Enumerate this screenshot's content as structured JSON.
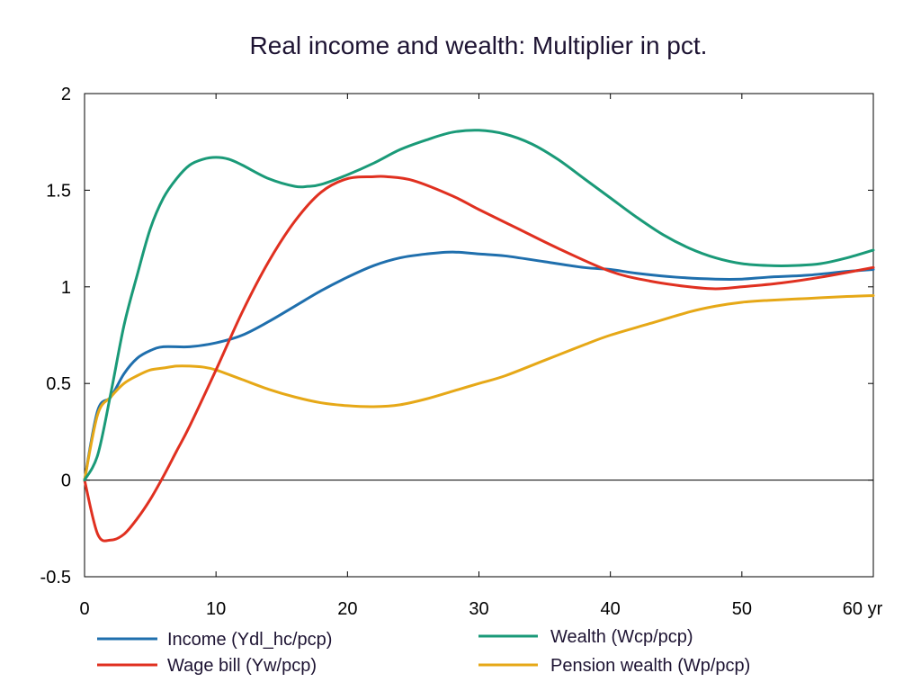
{
  "chart_data": {
    "type": "line",
    "title": "Real income and wealth: Multiplier in pct.",
    "xlabel": "",
    "ylabel": "",
    "x_unit_label": "yr",
    "xlim": [
      0,
      60
    ],
    "ylim": [
      -0.5,
      2
    ],
    "x_ticks": [
      0,
      10,
      20,
      30,
      40,
      50,
      60
    ],
    "x_tick_labels": [
      "0",
      "10",
      "20",
      "30",
      "40",
      "50",
      "60 yr"
    ],
    "y_ticks": [
      -0.5,
      0,
      0.5,
      1,
      1.5,
      2
    ],
    "y_tick_labels": [
      "-0.5",
      "0",
      "0.5",
      "1",
      "1.5",
      "2"
    ],
    "grid": false,
    "zero_line": true,
    "legend_position": "bottom",
    "series": [
      {
        "name": "Income (Ydl_hc/pcp)",
        "color": "#1f6fad",
        "x": [
          0,
          1,
          2,
          3,
          4,
          5,
          6,
          8,
          10,
          12,
          14,
          16,
          18,
          20,
          22,
          24,
          26,
          28,
          30,
          32,
          35,
          38,
          40,
          42,
          45,
          48,
          50,
          52,
          55,
          58,
          60
        ],
        "y": [
          0,
          0.36,
          0.43,
          0.55,
          0.63,
          0.67,
          0.69,
          0.69,
          0.71,
          0.75,
          0.82,
          0.9,
          0.98,
          1.05,
          1.11,
          1.15,
          1.17,
          1.18,
          1.17,
          1.16,
          1.13,
          1.1,
          1.09,
          1.07,
          1.05,
          1.04,
          1.04,
          1.05,
          1.06,
          1.08,
          1.09
        ]
      },
      {
        "name": "Wage bill (Yw/pcp)",
        "color": "#e03020",
        "x": [
          0,
          1,
          2,
          3,
          4,
          5,
          6,
          7,
          8,
          10,
          12,
          14,
          16,
          18,
          20,
          22,
          23,
          25,
          28,
          30,
          33,
          36,
          40,
          43,
          46,
          48,
          50,
          53,
          56,
          60
        ],
        "y": [
          0,
          -0.28,
          -0.31,
          -0.28,
          -0.2,
          -0.1,
          0.02,
          0.15,
          0.28,
          0.57,
          0.87,
          1.13,
          1.34,
          1.49,
          1.56,
          1.57,
          1.57,
          1.55,
          1.47,
          1.4,
          1.3,
          1.2,
          1.08,
          1.03,
          1.0,
          0.99,
          1.0,
          1.02,
          1.05,
          1.1
        ]
      },
      {
        "name": "Wealth (Wcp/pcp)",
        "color": "#1a9a78",
        "x": [
          0,
          1,
          2,
          3,
          4,
          5,
          6,
          7,
          8,
          9,
          10,
          11,
          12,
          14,
          16,
          17,
          18,
          20,
          22,
          24,
          26,
          28,
          30,
          32,
          34,
          36,
          38,
          40,
          42,
          44,
          46,
          48,
          50,
          52,
          54,
          56,
          58,
          60
        ],
        "y": [
          0,
          0.13,
          0.45,
          0.8,
          1.06,
          1.3,
          1.46,
          1.56,
          1.63,
          1.66,
          1.67,
          1.66,
          1.63,
          1.56,
          1.52,
          1.52,
          1.53,
          1.58,
          1.64,
          1.71,
          1.76,
          1.8,
          1.81,
          1.79,
          1.74,
          1.66,
          1.56,
          1.46,
          1.36,
          1.27,
          1.2,
          1.15,
          1.12,
          1.11,
          1.11,
          1.12,
          1.15,
          1.19
        ]
      },
      {
        "name": "Pension wealth (Wp/pcp)",
        "color": "#e6a817",
        "x": [
          0,
          1,
          2,
          3,
          4,
          5,
          6,
          7,
          8,
          9,
          10,
          12,
          14,
          16,
          18,
          20,
          22,
          24,
          26,
          28,
          30,
          32,
          35,
          38,
          40,
          43,
          46,
          48,
          50,
          52,
          55,
          58,
          60
        ],
        "y": [
          0,
          0.34,
          0.43,
          0.5,
          0.54,
          0.57,
          0.58,
          0.59,
          0.59,
          0.585,
          0.57,
          0.52,
          0.47,
          0.43,
          0.4,
          0.385,
          0.38,
          0.39,
          0.42,
          0.46,
          0.5,
          0.54,
          0.62,
          0.7,
          0.75,
          0.81,
          0.87,
          0.9,
          0.92,
          0.93,
          0.94,
          0.95,
          0.955
        ]
      }
    ]
  }
}
